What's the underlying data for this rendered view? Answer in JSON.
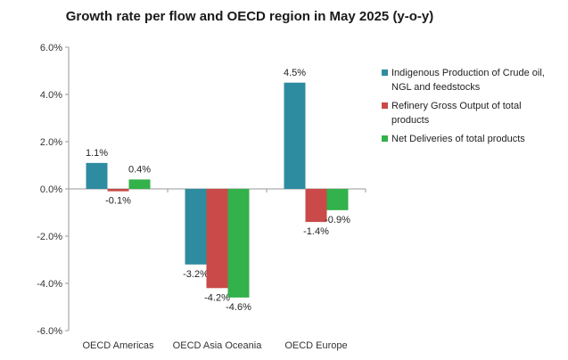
{
  "chart_data": {
    "type": "bar",
    "title": "Growth rate per flow and OECD region in May 2025 (y-o-y)",
    "categories": [
      "OECD Americas",
      "OECD Asia Oceania",
      "OECD Europe"
    ],
    "series": [
      {
        "name": "Indigenous Production of Crude oil, NGL and feedstocks",
        "color": "#2e8ca0",
        "values": [
          1.1,
          -3.2,
          4.5
        ],
        "labels": [
          "1.1%",
          "-3.2%",
          "4.5%"
        ]
      },
      {
        "name": "Refinery Gross Output of total products",
        "color": "#c94a48",
        "values": [
          -0.1,
          -4.2,
          -1.4
        ],
        "labels": [
          "-0.1%",
          "-4.2%",
          "-1.4%"
        ]
      },
      {
        "name": "Net Deliveries of total products",
        "color": "#33b14a",
        "values": [
          0.4,
          -4.6,
          -0.9
        ],
        "labels": [
          "0.4%",
          "-4.6%",
          "-0.9%"
        ]
      }
    ],
    "ylim": [
      -6,
      6
    ],
    "yticks": [
      6,
      4,
      2,
      0,
      -2,
      -4,
      -6
    ],
    "ytick_labels": [
      "6.0%",
      "4.0%",
      "2.0%",
      "0.0%",
      "-2.0%",
      "-4.0%",
      "-6.0%"
    ],
    "xlabel": "",
    "ylabel": "",
    "grid": false,
    "legend_position": "right"
  }
}
